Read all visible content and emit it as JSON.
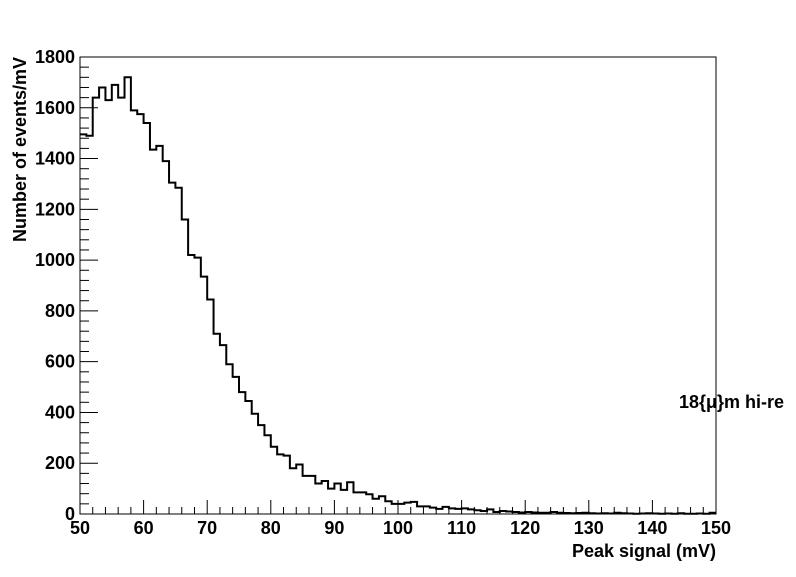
{
  "chart_data": {
    "type": "bar",
    "style": "step-histogram",
    "xlabel": "Peak signal (mV)",
    "ylabel": "Number of events/mV",
    "annotation": "18{μ}m hi-re",
    "xlim": [
      50,
      150
    ],
    "ylim": [
      0,
      1800
    ],
    "grid": false,
    "x_ticks": [
      50,
      60,
      70,
      80,
      90,
      100,
      110,
      120,
      130,
      140,
      150
    ],
    "y_ticks": [
      0,
      200,
      400,
      600,
      800,
      1000,
      1200,
      1400,
      1600,
      1800
    ],
    "bin_width": 1,
    "bin_start": 50,
    "values": [
      1495,
      1490,
      1640,
      1680,
      1630,
      1690,
      1640,
      1720,
      1590,
      1575,
      1540,
      1435,
      1450,
      1390,
      1305,
      1285,
      1160,
      1020,
      1010,
      935,
      845,
      710,
      665,
      590,
      540,
      480,
      445,
      395,
      350,
      310,
      265,
      235,
      230,
      180,
      195,
      150,
      150,
      120,
      130,
      100,
      120,
      95,
      125,
      85,
      85,
      78,
      60,
      70,
      50,
      40,
      40,
      45,
      48,
      30,
      30,
      25,
      20,
      28,
      22,
      20,
      22,
      18,
      15,
      12,
      18,
      8,
      12,
      10,
      8,
      6,
      8,
      6,
      5,
      5,
      8,
      5,
      4,
      3,
      4,
      5,
      3,
      2,
      3,
      2,
      5,
      3,
      2,
      1,
      2,
      3,
      2,
      1,
      2,
      1,
      3,
      1,
      1,
      2,
      1,
      5
    ]
  }
}
